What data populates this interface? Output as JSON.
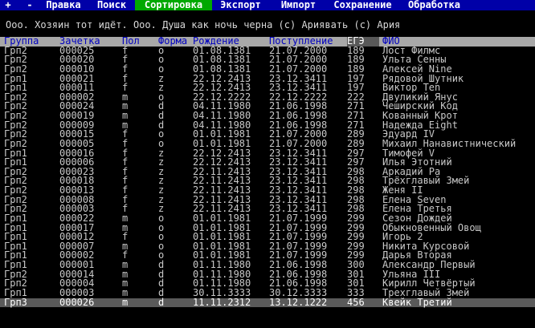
{
  "menu": [
    "+",
    "-",
    "Правка",
    "Поиск",
    "Сортировка",
    "Экспорт",
    "Импорт",
    "Сохранение",
    "Обработка"
  ],
  "menu_active": "Сортировка",
  "title": "Ооо. Хозяин тот идёт. Ооо. Душа как ночь черна (с) Ариявать (с) Ария",
  "columns": [
    "Группа",
    "Зачетка",
    "Пол",
    "Форма",
    "Рождение",
    "Поступление",
    "ЕГЭ",
    "ФИО"
  ],
  "sorted_column": "ЕГЭ",
  "rows": [
    [
      "Грп2",
      "000025",
      "f",
      "o",
      "01.08.1381",
      "21.07.2000",
      "189",
      "Лост Филмс"
    ],
    [
      "Грп2",
      "000020",
      "f",
      "o",
      "01.08.1381",
      "21.07.2000",
      "189",
      "Ульта Сенны"
    ],
    [
      "Грп2",
      "000010",
      "f",
      "o",
      "01.08.1381",
      "21.07.2000",
      "189",
      "Алексей Nine"
    ],
    [
      "Грп1",
      "000021",
      "f",
      "z",
      "22.12.2413",
      "23.12.3411",
      "197",
      "Рядовой Шутник"
    ],
    [
      "Грп1",
      "000011",
      "f",
      "z",
      "22.12.2413",
      "23.12.3411",
      "197",
      "Виктор Ten"
    ],
    [
      "Грп2",
      "000002",
      "m",
      "o",
      "22.12.2222",
      "22.12.2222",
      "222",
      "Двуликий Янус"
    ],
    [
      "Грп2",
      "000024",
      "m",
      "d",
      "04.11.1980",
      "21.06.1998",
      "271",
      "Чеширский Код"
    ],
    [
      "Грп2",
      "000019",
      "m",
      "d",
      "04.11.1980",
      "21.06.1998",
      "271",
      "Кованный Крот"
    ],
    [
      "Грп2",
      "000009",
      "m",
      "d",
      "04.11.1980",
      "21.06.1998",
      "271",
      "Надежда Eight"
    ],
    [
      "Грп2",
      "000015",
      "f",
      "o",
      "01.01.1981",
      "21.07.2000",
      "289",
      "Эдуард IV"
    ],
    [
      "Грп2",
      "000005",
      "f",
      "o",
      "01.01.1981",
      "21.07.2000",
      "289",
      "Михаил Нанавистнический"
    ],
    [
      "Грп1",
      "000016",
      "f",
      "z",
      "22.12.2413",
      "23.12.3411",
      "297",
      "Тимофей V"
    ],
    [
      "Грп1",
      "000006",
      "f",
      "z",
      "22.12.2413",
      "23.12.3411",
      "297",
      "Илья Этотний"
    ],
    [
      "Грп2",
      "000023",
      "f",
      "z",
      "22.11.2413",
      "23.12.3411",
      "298",
      "Аркадий Ра"
    ],
    [
      "Грп2",
      "000018",
      "f",
      "z",
      "22.11.2413",
      "23.12.3411",
      "298",
      "Трёхглавый Змей"
    ],
    [
      "Грп2",
      "000013",
      "f",
      "z",
      "22.11.2413",
      "23.12.3411",
      "298",
      "Женя II"
    ],
    [
      "Грп2",
      "000008",
      "f",
      "z",
      "22.11.2413",
      "23.12.3411",
      "298",
      "Елена Seven"
    ],
    [
      "Грп2",
      "000003",
      "f",
      "z",
      "22.11.2413",
      "23.12.3411",
      "298",
      "Елена Третья"
    ],
    [
      "Грп1",
      "000022",
      "m",
      "o",
      "01.01.1981",
      "21.07.1999",
      "299",
      "Сезон Дождей"
    ],
    [
      "Грп1",
      "000017",
      "m",
      "o",
      "01.01.1981",
      "21.07.1999",
      "299",
      "Обыкновенный Овощ"
    ],
    [
      "Грп1",
      "000012",
      "f",
      "o",
      "01.01.1981",
      "21.07.1999",
      "299",
      "Игорь 2"
    ],
    [
      "Грп1",
      "000007",
      "m",
      "o",
      "01.01.1981",
      "21.07.1999",
      "299",
      "Никита Курсовой"
    ],
    [
      "Грп1",
      "000002",
      "f",
      "o",
      "01.01.1981",
      "21.07.1999",
      "299",
      "Дарья Вторая"
    ],
    [
      "Грп1",
      "000001",
      "m",
      "d",
      "01.11.1980",
      "21.06.1998",
      "300",
      "Александр Первый"
    ],
    [
      "Грп2",
      "000014",
      "m",
      "d",
      "01.11.1980",
      "21.06.1998",
      "301",
      "Ульяна III"
    ],
    [
      "Грп2",
      "000004",
      "m",
      "d",
      "01.11.1980",
      "21.06.1998",
      "301",
      "Кирилл Четвёртый"
    ],
    [
      "Грп1",
      "000003",
      "m",
      "d",
      "30.11.3333",
      "30.12.3333",
      "333",
      "Трехглавый Змей"
    ],
    [
      "Грп3",
      "000026",
      "m",
      "d",
      "11.11.2312",
      "13.12.1222",
      "456",
      "Квейк Третий"
    ]
  ],
  "selected_row": 27
}
